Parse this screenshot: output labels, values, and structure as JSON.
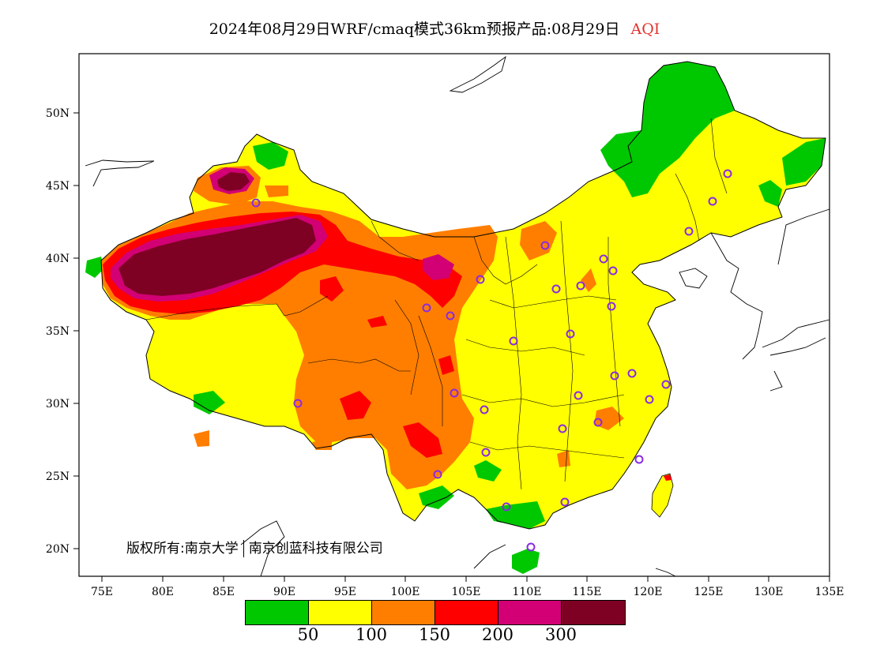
{
  "title": {
    "main": "2024年08月29日WRF/cmaq模式36km预报产品:08月29日",
    "variable": "AQI"
  },
  "axes": {
    "lat_labels": [
      "50N",
      "45N",
      "40N",
      "35N",
      "30N",
      "25N",
      "20N"
    ],
    "lon_labels": [
      "75E",
      "80E",
      "85E",
      "90E",
      "95E",
      "100E",
      "105E",
      "110E",
      "115E",
      "120E",
      "125E",
      "130E",
      "135E"
    ]
  },
  "copyright": {
    "label": "版权所有:",
    "org1": "南京大学",
    "org2": "南京创蓝科技有限公司"
  },
  "legend": {
    "colors": [
      "#00c800",
      "#ffff00",
      "#ff7e00",
      "#ff0000",
      "#d20074",
      "#7e0023"
    ],
    "labels": [
      "50",
      "100",
      "150",
      "200",
      "300"
    ]
  },
  "map_colors": {
    "good": "#00c800",
    "moderate": "#ffff00",
    "usg": "#ff7e00",
    "unhealthy": "#ff0000",
    "very_unhealthy": "#d20074",
    "hazardous": "#7e0023",
    "station_marker": "#8a2be2"
  }
}
